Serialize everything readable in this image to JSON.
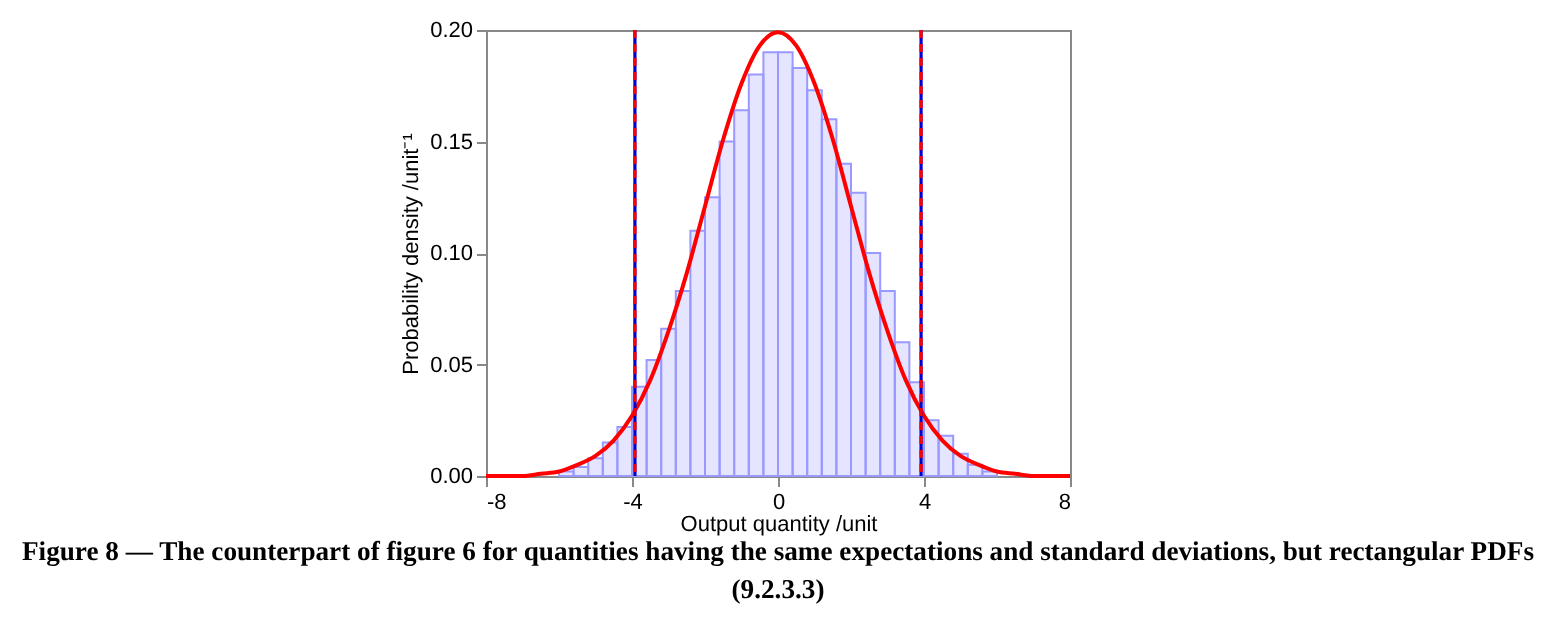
{
  "chart_data": {
    "type": "histogram",
    "xlabel": "Output quantity /unit",
    "ylabel": "Probability density /unit⁻¹",
    "xlim": [
      -8,
      8
    ],
    "xticks": [
      -8,
      -4,
      0,
      4,
      8
    ],
    "ylim": [
      0,
      0.2
    ],
    "yticks": [
      {
        "value": 0,
        "label": "0.00"
      },
      0.05,
      {
        "value": 0.1,
        "label": "0.10"
      },
      0.15,
      {
        "value": 0.2,
        "label": "0.20"
      }
    ],
    "series": [
      {
        "color": "#9999ff",
        "bins": [
          -6,
          -5.6,
          -5.2,
          -4.8,
          -4.4,
          -4,
          -3.6,
          -3.2,
          -2.8,
          -2.4,
          -2,
          -1.6,
          -1.2,
          -0.8,
          -0.4,
          0,
          0.4,
          0.8,
          1.2,
          1.6,
          2,
          2.4,
          2.8,
          3.2,
          3.6,
          4,
          4.4,
          4.8,
          5.2,
          5.6,
          6
        ],
        "values": [
          0.002,
          0.004,
          0.008,
          0.015,
          0.022,
          0.04,
          0.052,
          0.066,
          0.083,
          0.11,
          0.125,
          0.15,
          0.164,
          0.18,
          0.19,
          0.19,
          0.183,
          0.173,
          0.16,
          0.14,
          0.127,
          0.1,
          0.083,
          0.06,
          0.042,
          0.025,
          0.018,
          0.01,
          0.005,
          0.002
        ]
      },
      {
        "type": "line",
        "color": "#ff0000",
        "x": [
          -8,
          -7.5,
          -7,
          -6.5,
          -6,
          -5.5,
          -5,
          -4.5,
          -4,
          -3.5,
          -3,
          -2.5,
          -2,
          -1.5,
          -1,
          -0.5,
          0,
          0.5,
          1,
          1.5,
          2,
          2.5,
          3,
          3.5,
          4,
          4.5,
          5,
          5.5,
          6,
          6.5,
          7,
          7.5,
          8
        ],
        "values": [
          0,
          0,
          0,
          0.001,
          0.002,
          0.005,
          0.009,
          0.016,
          0.027,
          0.043,
          0.065,
          0.091,
          0.121,
          0.151,
          0.176,
          0.193,
          0.199,
          0.193,
          0.176,
          0.151,
          0.121,
          0.091,
          0.065,
          0.043,
          0.027,
          0.016,
          0.009,
          0.005,
          0.002,
          0.001,
          0,
          0,
          0
        ]
      }
    ],
    "ref_lines": [
      {
        "axis": "x",
        "value": -3.92,
        "color": "#0000cc",
        "line_style": "solid"
      },
      {
        "axis": "x",
        "value": 3.92,
        "color": "#0000cc",
        "line_style": "solid"
      },
      {
        "axis": "x",
        "value": -3.92,
        "color": "#ff0000",
        "line_style": "dashed"
      },
      {
        "axis": "x",
        "value": 3.92,
        "color": "#ff0000",
        "line_style": "dashed"
      }
    ],
    "annotations": [
      "Figure 8 — The counterpart of figure 6 for quantities having the same expectations and standard deviations, but rectangular PDFs (9.2.3.3)"
    ]
  }
}
